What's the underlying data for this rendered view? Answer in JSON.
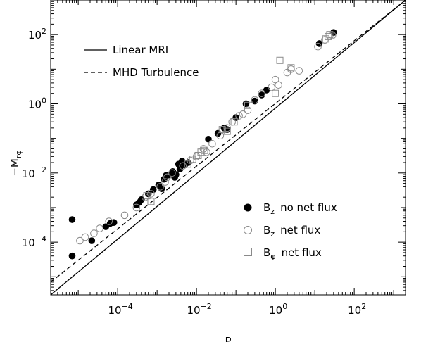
{
  "chart_data": {
    "type": "scatter",
    "xlabel": "P",
    "ylabel": "−M",
    "ylabel_subscript": "rφ",
    "xscale": "log",
    "yscale": "log",
    "xlim": [
      2e-06,
      2000
    ],
    "ylim": [
      3e-06,
      1000
    ],
    "x_ticks": [
      {
        "base": "10",
        "exp": "−4",
        "value": 0.0001
      },
      {
        "base": "10",
        "exp": "−2",
        "value": 0.01
      },
      {
        "base": "10",
        "exp": "0",
        "value": 1
      },
      {
        "base": "10",
        "exp": "2",
        "value": 100
      }
    ],
    "y_ticks": [
      {
        "base": "10",
        "exp": "−4",
        "value": 0.0001
      },
      {
        "base": "10",
        "exp": "−2",
        "value": 0.01
      },
      {
        "base": "10",
        "exp": "0",
        "value": 1
      },
      {
        "base": "10",
        "exp": "2",
        "value": 100
      }
    ],
    "lines": [
      {
        "name": "Linear MRI",
        "style": "solid",
        "points": [
          [
            2e-06,
            3e-06
          ],
          [
            2000,
            1000
          ]
        ]
      },
      {
        "name": "MHD Turbulence",
        "style": "dashed",
        "points": [
          [
            2e-06,
            7e-06
          ],
          [
            2000,
            1000
          ]
        ]
      }
    ],
    "legend_lines": [
      "Linear MRI",
      "MHD Turbulence"
    ],
    "series": [
      {
        "symbol_base": "B",
        "symbol_sub": "z",
        "label": "no net flux",
        "marker": "filled-circle",
        "points": [
          [
            7e-06,
            0.00045
          ],
          [
            7e-06,
            4e-05
          ],
          [
            2.2e-05,
            0.00011
          ],
          [
            5e-05,
            0.00028
          ],
          [
            6.5e-05,
            0.00035
          ],
          [
            8e-05,
            0.00037
          ],
          [
            0.0003,
            0.0012
          ],
          [
            0.00035,
            0.0014
          ],
          [
            0.0004,
            0.0017
          ],
          [
            0.0006,
            0.0025
          ],
          [
            0.0008,
            0.0033
          ],
          [
            0.0011,
            0.0045
          ],
          [
            0.0013,
            0.0035
          ],
          [
            0.0015,
            0.0066
          ],
          [
            0.0017,
            0.0085
          ],
          [
            0.002,
            0.0087
          ],
          [
            0.0023,
            0.0094
          ],
          [
            0.0025,
            0.011
          ],
          [
            0.0028,
            0.0075
          ],
          [
            0.003,
            0.009
          ],
          [
            0.0035,
            0.018
          ],
          [
            0.0038,
            0.013
          ],
          [
            0.0043,
            0.022
          ],
          [
            0.005,
            0.017
          ],
          [
            0.0062,
            0.02
          ],
          [
            0.02,
            0.095
          ],
          [
            0.035,
            0.14
          ],
          [
            0.05,
            0.2
          ],
          [
            0.06,
            0.18
          ],
          [
            0.1,
            0.4
          ],
          [
            0.18,
            1.0
          ],
          [
            0.3,
            1.2
          ],
          [
            0.45,
            1.8
          ],
          [
            0.6,
            2.5
          ],
          [
            13,
            55
          ],
          [
            30,
            115
          ]
        ]
      },
      {
        "symbol_base": "B",
        "symbol_sub": "z",
        "label": "net flux",
        "marker": "open-circle",
        "points": [
          [
            1.1e-05,
            0.00011
          ],
          [
            1.5e-05,
            0.00014
          ],
          [
            2.5e-05,
            0.00018
          ],
          [
            3.5e-05,
            0.00025
          ],
          [
            6e-05,
            0.0004
          ],
          [
            0.00015,
            0.0006
          ],
          [
            0.0003,
            0.001
          ],
          [
            0.0005,
            0.002
          ],
          [
            0.0007,
            0.0025
          ],
          [
            0.0012,
            0.004
          ],
          [
            0.0016,
            0.0055
          ],
          [
            0.0018,
            0.0075
          ],
          [
            0.0024,
            0.01
          ],
          [
            0.0045,
            0.016
          ],
          [
            0.007,
            0.023
          ],
          [
            0.01,
            0.03
          ],
          [
            0.015,
            0.05
          ],
          [
            0.018,
            0.04
          ],
          [
            0.025,
            0.07
          ],
          [
            0.04,
            0.12
          ],
          [
            0.06,
            0.2
          ],
          [
            0.08,
            0.3
          ],
          [
            0.12,
            0.45
          ],
          [
            0.15,
            0.5
          ],
          [
            0.2,
            0.65
          ],
          [
            0.3,
            1.3
          ],
          [
            0.45,
            2.0
          ],
          [
            0.8,
            3.0
          ],
          [
            1.0,
            5.0
          ],
          [
            1.2,
            3.5
          ],
          [
            2.0,
            8.0
          ],
          [
            2.5,
            10
          ],
          [
            4,
            9
          ],
          [
            12,
            45
          ],
          [
            18,
            70
          ],
          [
            28,
            95
          ]
        ]
      },
      {
        "symbol_base": "B",
        "symbol_sub": "φ",
        "label": "net flux",
        "marker": "open-square",
        "points": [
          [
            0.00055,
            0.0022
          ],
          [
            0.0007,
            0.0015
          ],
          [
            0.006,
            0.018
          ],
          [
            0.008,
            0.025
          ],
          [
            0.011,
            0.032
          ],
          [
            0.013,
            0.04
          ],
          [
            0.016,
            0.045
          ],
          [
            0.045,
            0.18
          ],
          [
            0.06,
            0.16
          ],
          [
            0.09,
            0.3
          ],
          [
            0.2,
            0.9
          ],
          [
            1.0,
            2.0
          ],
          [
            1.3,
            18
          ],
          [
            2.5,
            11
          ],
          [
            19,
            75
          ],
          [
            22,
            88
          ],
          [
            24,
            100
          ]
        ]
      }
    ]
  }
}
